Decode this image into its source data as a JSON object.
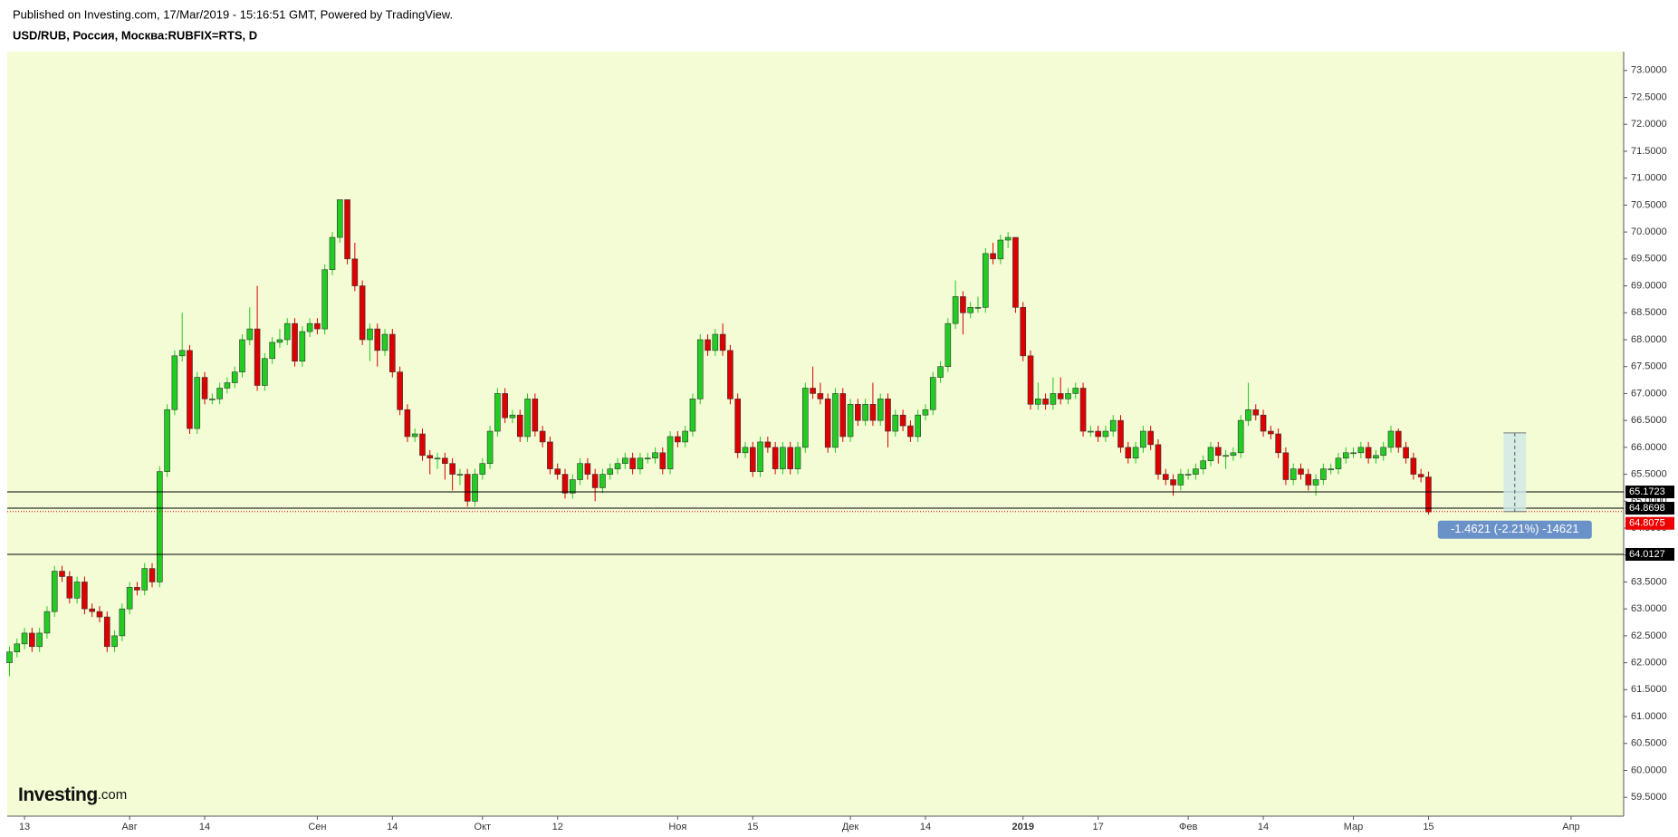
{
  "header": {
    "published": "Published on Investing.com, 17/Mar/2019 - 15:16:51 GMT, Powered by TradingView.",
    "symbol": "USD/RUB, Россия, Москва:RUBFIX=RTS, D"
  },
  "logo": {
    "main": "Investing",
    "suffix": ".com"
  },
  "chart_data": {
    "type": "candlestick",
    "background": "#f3fcd5",
    "up_color": "#22cc22",
    "down_color": "#dd0000",
    "xlim": [
      -0.3,
      215
    ],
    "xticks": [
      {
        "value": 2,
        "label": "13"
      },
      {
        "value": 16,
        "label": "Авг"
      },
      {
        "value": 26,
        "label": "14"
      },
      {
        "value": 41,
        "label": "Сен"
      },
      {
        "value": 51,
        "label": "14"
      },
      {
        "value": 63,
        "label": "Окт"
      },
      {
        "value": 73,
        "label": "12"
      },
      {
        "value": 89,
        "label": "Ноя"
      },
      {
        "value": 99,
        "label": "15"
      },
      {
        "value": 112,
        "label": "Дек"
      },
      {
        "value": 122,
        "label": "14"
      },
      {
        "value": 135,
        "label": "2019"
      },
      {
        "value": 145,
        "label": "17"
      },
      {
        "value": 157,
        "label": "Фев"
      },
      {
        "value": 167,
        "label": "14"
      },
      {
        "value": 179,
        "label": "Мар"
      },
      {
        "value": 189,
        "label": "15"
      },
      {
        "value": 208,
        "label": "Апр"
      }
    ],
    "ylim": [
      59.15,
      73.35
    ],
    "yticks": [
      {
        "value": 59.5,
        "label": "59.5000"
      },
      {
        "value": 60,
        "label": "60.0000"
      },
      {
        "value": 60.5,
        "label": "60.5000"
      },
      {
        "value": 61,
        "label": "61.0000"
      },
      {
        "value": 61.5,
        "label": "61.5000"
      },
      {
        "value": 62,
        "label": "62.0000"
      },
      {
        "value": 62.5,
        "label": "62.5000"
      },
      {
        "value": 63,
        "label": "63.0000"
      },
      {
        "value": 63.5,
        "label": "63.5000"
      },
      {
        "value": 64,
        "label": "64.0000"
      },
      {
        "value": 64.5,
        "label": "64.5000"
      },
      {
        "value": 65,
        "label": "65.0000"
      },
      {
        "value": 65.5,
        "label": "65.5000"
      },
      {
        "value": 66,
        "label": "66.0000"
      },
      {
        "value": 66.5,
        "label": "66.5000"
      },
      {
        "value": 67,
        "label": "67.0000"
      },
      {
        "value": 67.5,
        "label": "67.5000"
      },
      {
        "value": 68,
        "label": "68.0000"
      },
      {
        "value": 68.5,
        "label": "68.5000"
      },
      {
        "value": 69,
        "label": "69.0000"
      },
      {
        "value": 69.5,
        "label": "69.5000"
      },
      {
        "value": 70,
        "label": "70.0000"
      },
      {
        "value": 70.5,
        "label": "70.5000"
      },
      {
        "value": 71,
        "label": "71.0000"
      },
      {
        "value": 71.5,
        "label": "71.5000"
      },
      {
        "value": 72,
        "label": "72.0000"
      },
      {
        "value": 72.5,
        "label": "72.5000"
      },
      {
        "value": 73,
        "label": "73.0000"
      }
    ],
    "hlines": [
      65.1723,
      64.8698,
      64.0127
    ],
    "last_price": 64.8075,
    "measure": {
      "x_start": 199,
      "x_end": 202,
      "start": 66.2696,
      "end": 64.8075,
      "label": "-1.4621 (-2.21%) -14621"
    },
    "series": [
      {
        "name": "USD/RUB",
        "open": [
          62.0,
          62.2,
          62.35,
          62.55,
          62.3,
          62.55,
          62.95,
          63.7,
          63.6,
          63.2,
          63.5,
          63.0,
          62.95,
          62.85,
          62.3,
          62.5,
          63.0,
          63.4,
          63.35,
          63.75,
          63.5,
          65.55,
          66.7,
          67.7,
          67.8,
          66.35,
          67.3,
          66.9,
          66.9,
          67.1,
          67.2,
          67.4,
          68.0,
          68.2,
          67.15,
          67.65,
          67.95,
          68.0,
          68.3,
          67.6,
          68.15,
          68.3,
          68.2,
          69.3,
          69.9,
          70.6,
          69.5,
          69.0,
          68.0,
          68.2,
          67.8,
          68.1,
          67.4,
          66.7,
          66.2,
          66.25,
          65.85,
          65.8,
          65.8,
          65.7,
          65.5,
          65.5,
          65.0,
          65.5,
          65.7,
          66.3,
          67.0,
          66.55,
          66.6,
          66.2,
          66.9,
          66.3,
          66.1,
          65.6,
          65.5,
          65.15,
          65.4,
          65.7,
          65.5,
          65.25,
          65.5,
          65.6,
          65.7,
          65.8,
          65.6,
          65.8,
          65.8,
          65.9,
          65.6,
          66.2,
          66.1,
          66.3,
          66.9,
          68.0,
          67.8,
          68.1,
          67.8,
          66.9,
          65.9,
          66.0,
          65.55,
          66.1,
          66.0,
          65.6,
          66.0,
          65.6,
          66.0,
          67.1,
          67.0,
          66.9,
          66.0,
          67.0,
          66.2,
          66.8,
          66.5,
          66.8,
          66.5,
          66.9,
          66.3,
          66.6,
          66.4,
          66.2,
          66.6,
          66.7,
          67.3,
          67.5,
          68.3,
          68.8,
          68.5,
          68.6,
          68.6,
          69.6,
          69.5,
          69.85,
          69.9,
          68.6,
          67.7,
          66.8,
          66.9,
          66.8,
          67.0,
          66.9,
          67.0,
          67.1,
          66.3,
          66.3,
          66.2,
          66.3,
          66.5,
          66.0,
          65.8,
          66.0,
          66.3,
          66.05,
          65.5,
          65.4,
          65.3,
          65.5,
          65.5,
          65.6,
          65.75,
          66.0,
          65.85,
          65.85,
          65.9,
          66.5,
          66.7,
          66.6,
          66.3,
          66.25,
          65.9,
          65.4,
          65.6,
          65.5,
          65.3,
          65.4,
          65.6,
          65.6,
          65.8,
          65.9,
          65.9,
          66.0,
          65.8,
          65.85,
          66.0,
          66.3,
          66.0,
          65.8,
          65.5,
          65.45
        ],
        "high": [
          62.3,
          62.45,
          62.65,
          62.65,
          62.65,
          63.05,
          63.8,
          63.8,
          63.7,
          63.6,
          63.6,
          63.1,
          63.05,
          62.95,
          62.6,
          63.1,
          63.5,
          63.5,
          63.85,
          63.85,
          65.65,
          66.8,
          67.8,
          68.5,
          67.9,
          67.4,
          67.4,
          67.0,
          67.2,
          67.3,
          67.5,
          68.1,
          68.6,
          69.0,
          67.75,
          68.05,
          68.2,
          68.4,
          68.4,
          68.25,
          68.4,
          68.4,
          69.4,
          70.0,
          70.6,
          70.6,
          69.8,
          69.1,
          68.3,
          68.3,
          68.2,
          68.2,
          67.5,
          66.8,
          66.35,
          66.35,
          65.95,
          65.9,
          65.9,
          65.8,
          65.6,
          65.6,
          65.6,
          65.8,
          66.4,
          67.1,
          67.1,
          66.7,
          66.7,
          67.0,
          67.0,
          66.4,
          66.2,
          65.7,
          65.6,
          65.5,
          65.8,
          65.8,
          65.6,
          65.6,
          65.7,
          65.8,
          65.9,
          65.9,
          65.9,
          65.9,
          66.0,
          66.0,
          66.3,
          66.3,
          66.4,
          67.0,
          68.1,
          68.1,
          68.2,
          68.3,
          67.9,
          67.0,
          66.1,
          66.1,
          66.2,
          66.2,
          66.1,
          66.1,
          66.1,
          66.1,
          67.2,
          67.5,
          67.2,
          67.0,
          67.1,
          67.1,
          66.9,
          66.9,
          66.9,
          67.2,
          67.0,
          67.0,
          66.7,
          66.7,
          66.5,
          66.7,
          66.8,
          67.4,
          67.6,
          68.4,
          69.1,
          68.9,
          68.7,
          68.8,
          69.7,
          69.8,
          69.95,
          70.0,
          69.9,
          68.7,
          67.8,
          67.2,
          67.0,
          67.3,
          67.3,
          67.1,
          67.2,
          67.2,
          66.4,
          66.4,
          66.4,
          66.6,
          66.6,
          66.1,
          66.1,
          66.4,
          66.4,
          66.15,
          65.6,
          65.5,
          65.6,
          65.6,
          65.7,
          65.85,
          66.1,
          66.1,
          65.95,
          66.0,
          66.6,
          67.2,
          66.8,
          66.7,
          66.4,
          66.35,
          66.0,
          65.7,
          65.7,
          65.6,
          65.5,
          65.7,
          65.7,
          65.9,
          66.0,
          66.0,
          66.1,
          66.1,
          65.95,
          66.1,
          66.4,
          66.35,
          66.1,
          65.9,
          65.6,
          65.55
        ],
        "low": [
          61.75,
          62.1,
          62.25,
          62.2,
          62.2,
          62.45,
          62.85,
          63.5,
          63.1,
          63.1,
          62.9,
          62.85,
          62.75,
          62.2,
          62.2,
          62.4,
          62.9,
          63.25,
          63.25,
          63.4,
          63.4,
          65.45,
          66.6,
          67.6,
          66.25,
          66.25,
          66.8,
          66.8,
          66.8,
          67.0,
          67.1,
          67.3,
          67.9,
          67.05,
          67.05,
          67.55,
          67.85,
          67.9,
          67.5,
          67.5,
          68.05,
          68.1,
          68.1,
          69.2,
          69.8,
          69.4,
          68.9,
          67.9,
          67.6,
          67.5,
          67.7,
          67.3,
          66.6,
          66.1,
          66.1,
          65.75,
          65.5,
          65.6,
          65.4,
          65.2,
          65.3,
          64.9,
          64.9,
          65.4,
          65.6,
          66.2,
          66.45,
          66.45,
          66.1,
          66.1,
          66.2,
          66.0,
          65.5,
          65.4,
          65.05,
          65.05,
          65.3,
          65.4,
          65.0,
          65.15,
          65.4,
          65.5,
          65.6,
          65.5,
          65.5,
          65.7,
          65.7,
          65.5,
          65.5,
          66.0,
          66.0,
          66.2,
          66.8,
          67.7,
          67.7,
          67.7,
          66.8,
          65.8,
          65.8,
          65.45,
          65.45,
          65.9,
          65.5,
          65.5,
          65.5,
          65.5,
          65.9,
          66.9,
          66.8,
          65.9,
          65.9,
          66.1,
          66.1,
          66.4,
          66.4,
          66.4,
          66.4,
          66.0,
          66.2,
          66.3,
          66.1,
          66.1,
          66.5,
          66.6,
          67.2,
          67.4,
          68.2,
          68.1,
          68.4,
          68.5,
          68.5,
          69.4,
          69.4,
          69.7,
          68.5,
          67.6,
          66.7,
          66.7,
          66.7,
          66.7,
          66.8,
          66.8,
          66.9,
          66.2,
          66.2,
          66.1,
          66.1,
          66.2,
          65.9,
          65.7,
          65.7,
          65.9,
          65.95,
          65.4,
          65.3,
          65.1,
          65.2,
          65.4,
          65.4,
          65.5,
          65.65,
          65.7,
          65.6,
          65.75,
          65.8,
          66.4,
          66.5,
          66.2,
          66.15,
          65.8,
          65.3,
          65.3,
          65.4,
          65.2,
          65.1,
          65.3,
          65.5,
          65.5,
          65.7,
          65.8,
          65.8,
          65.7,
          65.7,
          65.75,
          65.9,
          65.9,
          65.7,
          65.4,
          65.35,
          64.75
        ],
        "close": [
          62.2,
          62.35,
          62.55,
          62.3,
          62.55,
          62.95,
          63.7,
          63.6,
          63.2,
          63.5,
          63.0,
          62.95,
          62.85,
          62.3,
          62.5,
          63.0,
          63.4,
          63.35,
          63.75,
          63.5,
          65.55,
          66.7,
          67.7,
          67.8,
          66.35,
          67.3,
          66.9,
          66.9,
          67.1,
          67.2,
          67.4,
          68.0,
          68.2,
          67.15,
          67.65,
          67.95,
          68.0,
          68.3,
          67.6,
          68.15,
          68.3,
          68.2,
          69.3,
          69.9,
          70.6,
          69.5,
          69.0,
          68.0,
          68.2,
          67.8,
          68.1,
          67.4,
          66.7,
          66.2,
          66.25,
          65.85,
          65.8,
          65.8,
          65.7,
          65.5,
          65.5,
          65.0,
          65.5,
          65.7,
          66.3,
          67.0,
          66.55,
          66.6,
          66.2,
          66.9,
          66.3,
          66.1,
          65.6,
          65.5,
          65.15,
          65.4,
          65.7,
          65.5,
          65.25,
          65.5,
          65.6,
          65.7,
          65.8,
          65.6,
          65.8,
          65.8,
          65.9,
          65.6,
          66.2,
          66.1,
          66.3,
          66.9,
          68.0,
          67.8,
          68.1,
          67.8,
          66.9,
          65.9,
          66.0,
          65.55,
          66.1,
          66.0,
          65.6,
          66.0,
          65.6,
          66.0,
          67.1,
          67.0,
          66.9,
          66.0,
          67.0,
          66.2,
          66.8,
          66.5,
          66.8,
          66.5,
          66.9,
          66.3,
          66.6,
          66.4,
          66.2,
          66.6,
          66.7,
          67.3,
          67.5,
          68.3,
          68.8,
          68.5,
          68.6,
          68.6,
          69.6,
          69.5,
          69.85,
          69.9,
          68.6,
          67.7,
          66.8,
          66.9,
          66.8,
          67.0,
          66.9,
          67.0,
          67.1,
          66.3,
          66.3,
          66.2,
          66.3,
          66.5,
          66.0,
          65.8,
          66.0,
          66.3,
          66.05,
          65.5,
          65.4,
          65.3,
          65.5,
          65.5,
          65.6,
          65.75,
          66.0,
          65.85,
          65.85,
          65.9,
          66.5,
          66.7,
          66.6,
          66.3,
          66.25,
          65.9,
          65.4,
          65.6,
          65.5,
          65.3,
          65.4,
          65.6,
          65.6,
          65.8,
          65.9,
          65.9,
          66.0,
          65.8,
          65.85,
          66.0,
          66.3,
          66.0,
          65.8,
          65.5,
          65.45,
          64.8
        ]
      }
    ]
  }
}
